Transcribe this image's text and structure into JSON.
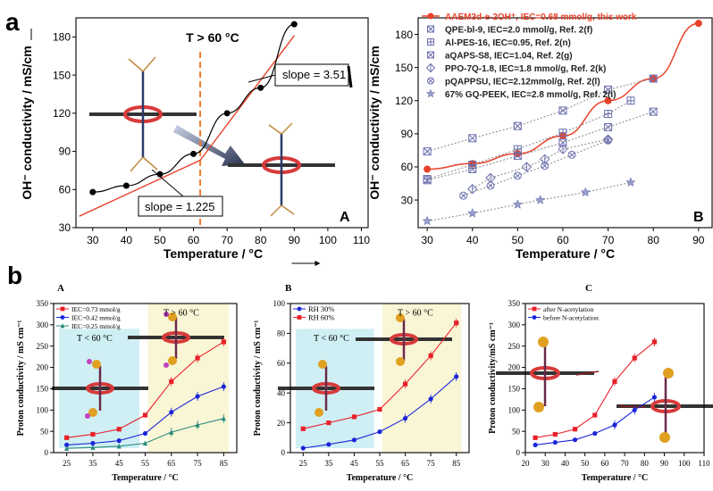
{
  "figure": {
    "label_a": "a",
    "label_b": "b"
  },
  "chart_data": [
    {
      "id": "a-left",
      "type": "scatter",
      "panel_letter": "A",
      "xlabel": "Temperature / °C",
      "ylabel": "OH⁻ conductivity / mS/cm",
      "xlim": [
        25,
        112
      ],
      "ylim": [
        30,
        195
      ],
      "xticks": [
        30,
        40,
        50,
        60,
        70,
        80,
        90,
        100,
        110
      ],
      "yticks": [
        30,
        60,
        90,
        120,
        150,
        180
      ],
      "series": [
        {
          "x": [
            30,
            40,
            50,
            60,
            70,
            80,
            90
          ],
          "y": [
            58,
            63,
            72,
            88,
            120,
            140,
            190
          ],
          "color": "#000000"
        }
      ],
      "fit_lines": [
        {
          "label": "slope = 1.225",
          "x": [
            26,
            62
          ],
          "y": [
            39,
            83
          ],
          "color": "#e8412a"
        },
        {
          "label": "slope = 3.51",
          "x": [
            62,
            90
          ],
          "y": [
            83,
            181
          ],
          "color": "#e8412a"
        }
      ],
      "vline": {
        "x": 62,
        "label": "T > 60 °C",
        "color": "#f07a30"
      }
    },
    {
      "id": "a-right",
      "type": "scatter",
      "panel_letter": "B",
      "xlabel": "Temperature / °C",
      "ylabel": "OH⁻ conductivity / mS/cm",
      "xlim": [
        28,
        93
      ],
      "ylim": [
        5,
        195
      ],
      "xticks": [
        30,
        40,
        50,
        60,
        70,
        80,
        90
      ],
      "yticks": [
        30,
        60,
        90,
        120,
        150,
        180
      ],
      "legend": "top-left",
      "series": [
        {
          "name": "AAEM3d-e-2OH⁺, IEC=0.68 mmol/g, this work",
          "x": [
            30,
            40,
            50,
            60,
            70,
            80,
            90
          ],
          "y": [
            58,
            63,
            72,
            88,
            120,
            140,
            190
          ],
          "color": "#e8412a"
        },
        {
          "name": "QPE-bl-9, IEC=2.0 mmol/g, Ref. 2(f)",
          "x": [
            30,
            40,
            50,
            60,
            70,
            80
          ],
          "y": [
            74,
            86,
            97,
            111,
            130,
            140
          ],
          "color": "#6b6fae"
        },
        {
          "name": "Al-PES-16, IEC=0.95, Ref. 2(n)",
          "x": [
            30,
            40,
            50,
            60,
            70,
            75
          ],
          "y": [
            49,
            62,
            76,
            91,
            108,
            120
          ],
          "color": "#6b6fae"
        },
        {
          "name": "aQAPS-S8, IEC=1.04, Ref. 2(g)",
          "x": [
            30,
            40,
            50,
            60,
            70,
            80
          ],
          "y": [
            48,
            58,
            70,
            82,
            96,
            110
          ],
          "color": "#6b6fae"
        },
        {
          "name": "PPO-7Q-1.8, IEC=1.8 mmol/g, Ref. 2(k)",
          "x": [
            40,
            44,
            52,
            56,
            60,
            70
          ],
          "y": [
            40,
            50,
            60,
            67,
            76,
            85
          ],
          "color": "#6b6fae"
        },
        {
          "name": "pQAPPSU, IEC=2.12mmol/g, Ref. 2(l)",
          "x": [
            38,
            44,
            50,
            56,
            62,
            70
          ],
          "y": [
            34,
            43,
            52,
            61,
            71,
            84
          ],
          "color": "#6b6fae"
        },
        {
          "name": "67% GQ-PEEK, IEC=2.8 mmol/g, Ref. 2(i)",
          "x": [
            30,
            40,
            50,
            55,
            65,
            75
          ],
          "y": [
            11,
            18,
            26,
            30,
            37,
            46
          ],
          "color": "#6b6fae"
        }
      ]
    },
    {
      "id": "b-A",
      "type": "line",
      "panel_letter": "A",
      "xlabel": "Temperature / °C",
      "ylabel": "Proton conductivity / mS cm⁻¹",
      "xlim": [
        20,
        90
      ],
      "ylim": [
        0,
        350
      ],
      "xticks": [
        25,
        35,
        45,
        55,
        65,
        75,
        85
      ],
      "yticks": [
        0,
        50,
        100,
        150,
        200,
        250,
        300,
        350
      ],
      "legend": "top-left",
      "region_labels": [
        "T < 60 °C",
        "T > 60 °C"
      ],
      "series": [
        {
          "name": "IEC=0.73 mmol/g",
          "x": [
            25,
            35,
            45,
            55,
            65,
            75,
            85
          ],
          "y": [
            35,
            43,
            55,
            88,
            167,
            222,
            260
          ],
          "color": "#e8212a"
        },
        {
          "name": "IEC=0.42 mmol/g",
          "x": [
            25,
            35,
            45,
            55,
            65,
            75,
            85
          ],
          "y": [
            18,
            22,
            28,
            45,
            95,
            132,
            155
          ],
          "color": "#1a25d8"
        },
        {
          "name": "IEC=0.25 mmol/g",
          "x": [
            25,
            35,
            45,
            55,
            65,
            75,
            85
          ],
          "y": [
            10,
            12,
            15,
            22,
            48,
            65,
            80
          ],
          "color": "#2a8a7a"
        }
      ]
    },
    {
      "id": "b-B",
      "type": "line",
      "panel_letter": "B",
      "xlabel": "Temperature / °C",
      "ylabel": "Proton conductivity / mS cm⁻¹",
      "xlim": [
        20,
        90
      ],
      "ylim": [
        0,
        100
      ],
      "xticks": [
        25,
        35,
        45,
        55,
        65,
        75,
        85
      ],
      "yticks": [
        0,
        20,
        40,
        60,
        80,
        100
      ],
      "legend": "top-left",
      "region_labels": [
        "T < 60 °C",
        "T > 60 °C"
      ],
      "series": [
        {
          "name": "RH 30%",
          "x": [
            25,
            35,
            45,
            55,
            65,
            75,
            85
          ],
          "y": [
            3,
            5.5,
            8.5,
            14,
            23,
            36,
            51
          ],
          "color": "#1a25d8"
        },
        {
          "name": "RH 60%",
          "x": [
            25,
            35,
            45,
            55,
            65,
            75,
            85
          ],
          "y": [
            16,
            20,
            24,
            29,
            46,
            65,
            87
          ],
          "color": "#e8212a"
        }
      ]
    },
    {
      "id": "b-C",
      "type": "line",
      "panel_letter": "C",
      "xlabel": "Temperature / °C",
      "ylabel": "Proton conductivity/mS cm⁻¹",
      "xlim": [
        20,
        110
      ],
      "ylim": [
        0,
        350
      ],
      "xticks": [
        20,
        30,
        40,
        50,
        60,
        70,
        80,
        90,
        100,
        110
      ],
      "yticks": [
        0,
        50,
        100,
        150,
        200,
        250,
        300,
        350
      ],
      "legend": "top-left",
      "series": [
        {
          "name": "after N-acetylation",
          "x": [
            25,
            35,
            45,
            55,
            65,
            75,
            85
          ],
          "y": [
            35,
            43,
            55,
            88,
            167,
            222,
            260
          ],
          "color": "#e8212a"
        },
        {
          "name": "before N-acetylation",
          "x": [
            25,
            35,
            45,
            55,
            65,
            75,
            85
          ],
          "y": [
            18,
            24,
            30,
            45,
            65,
            100,
            130
          ],
          "color": "#1a25d8"
        }
      ]
    }
  ],
  "annotations": {
    "a_left_panel": "A",
    "a_right_panel": "B",
    "t_gt_60": "T > 60 °C",
    "slope_low": "slope = 1.225",
    "slope_high": "slope = 3.51",
    "region_low": "T < 60 °C",
    "region_high": "T > 60 °C"
  }
}
